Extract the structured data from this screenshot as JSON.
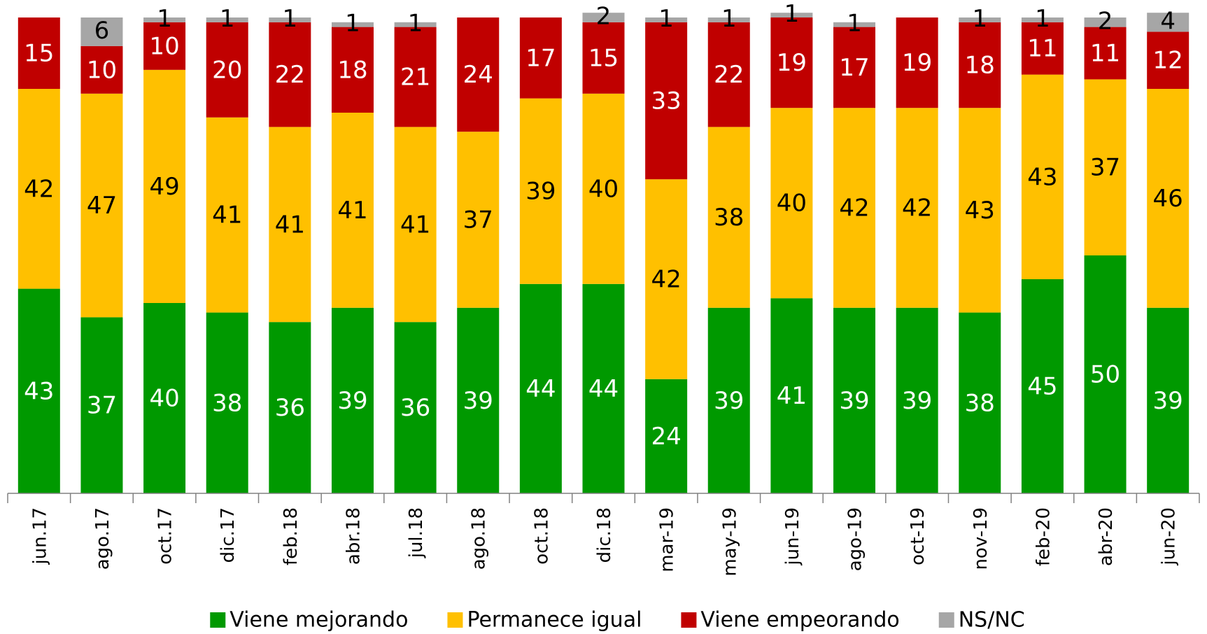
{
  "chart_data": {
    "type": "stacked_bar",
    "categories": [
      "jun.17",
      "ago.17",
      "oct.17",
      "dic.17",
      "feb.18",
      "abr.18",
      "jul.18",
      "ago.18",
      "oct.18",
      "dic.18",
      "mar-19",
      "may-19",
      "jun-19",
      "ago-19",
      "oct-19",
      "nov-19",
      "feb-20",
      "abr-20",
      "jun-20"
    ],
    "series": [
      {
        "name": "Viene mejorando",
        "color": "#009900",
        "values": [
          43,
          37,
          40,
          38,
          36,
          39,
          36,
          39,
          44,
          44,
          24,
          39,
          41,
          39,
          39,
          38,
          45,
          50,
          39
        ]
      },
      {
        "name": "Permanece igual",
        "color": "#ffc000",
        "values": [
          42,
          47,
          49,
          41,
          41,
          41,
          41,
          37,
          39,
          40,
          42,
          38,
          40,
          42,
          42,
          43,
          43,
          37,
          46
        ]
      },
      {
        "name": "Viene empeorando",
        "color": "#c00000",
        "values": [
          15,
          10,
          10,
          20,
          22,
          18,
          21,
          24,
          17,
          15,
          33,
          22,
          19,
          17,
          19,
          18,
          11,
          11,
          12
        ]
      },
      {
        "name": "NS/NC",
        "color": "#a6a6a6",
        "values": [
          null,
          6,
          1,
          1,
          1,
          1,
          1,
          null,
          null,
          2,
          1,
          1,
          1,
          1,
          null,
          1,
          1,
          2,
          4
        ]
      }
    ],
    "ylim": [
      0,
      100
    ],
    "legend": "bottom"
  }
}
